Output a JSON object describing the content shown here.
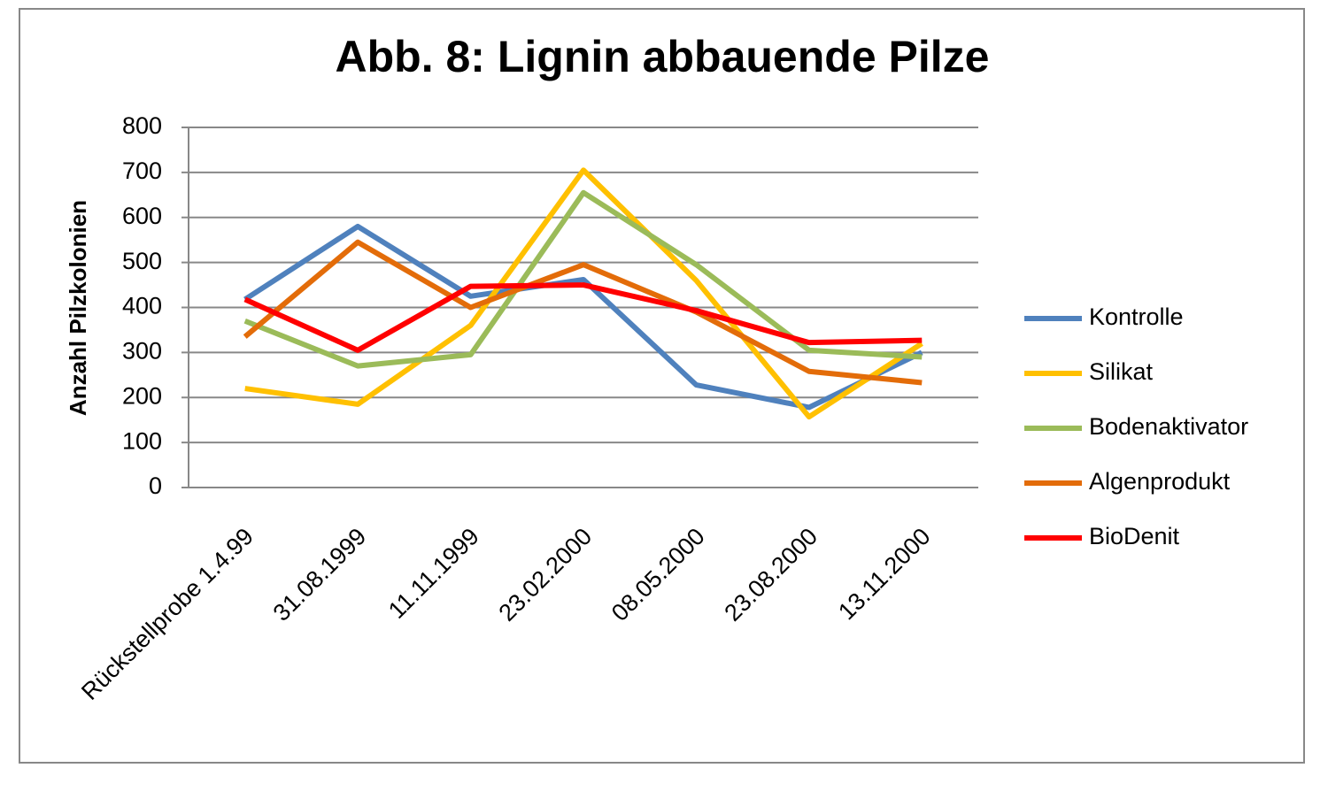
{
  "chart_data": {
    "type": "line",
    "title": "Abb. 8: Lignin abbauende Pilze",
    "y_label": "Anzahl Pilzkolonien",
    "categories": [
      "Rückstellprobe 1.4.99",
      "31.08.1999",
      "11.11.1999",
      "23.02.2000",
      "08.05.2000",
      "23.08.2000",
      "13.11.2000"
    ],
    "series": [
      {
        "name": "Kontrolle",
        "color": "#4f81bd",
        "values": [
          418,
          580,
          425,
          462,
          228,
          178,
          300
        ]
      },
      {
        "name": "Silikat",
        "color": "#ffc000",
        "values": [
          220,
          185,
          360,
          705,
          460,
          157,
          320
        ]
      },
      {
        "name": "Bodenaktivator",
        "color": "#9bbb59",
        "values": [
          370,
          270,
          295,
          655,
          495,
          305,
          290
        ]
      },
      {
        "name": "Algenprodukt",
        "color": "#e36c09",
        "values": [
          335,
          545,
          400,
          495,
          390,
          258,
          233
        ]
      },
      {
        "name": "BioDenit",
        "color": "#ff0000",
        "values": [
          418,
          305,
          447,
          450,
          393,
          322,
          327
        ]
      }
    ],
    "ylim": [
      0,
      800
    ],
    "yticks": [
      0,
      100,
      200,
      300,
      400,
      500,
      600,
      700,
      800
    ],
    "grid": true,
    "legend": "right"
  }
}
